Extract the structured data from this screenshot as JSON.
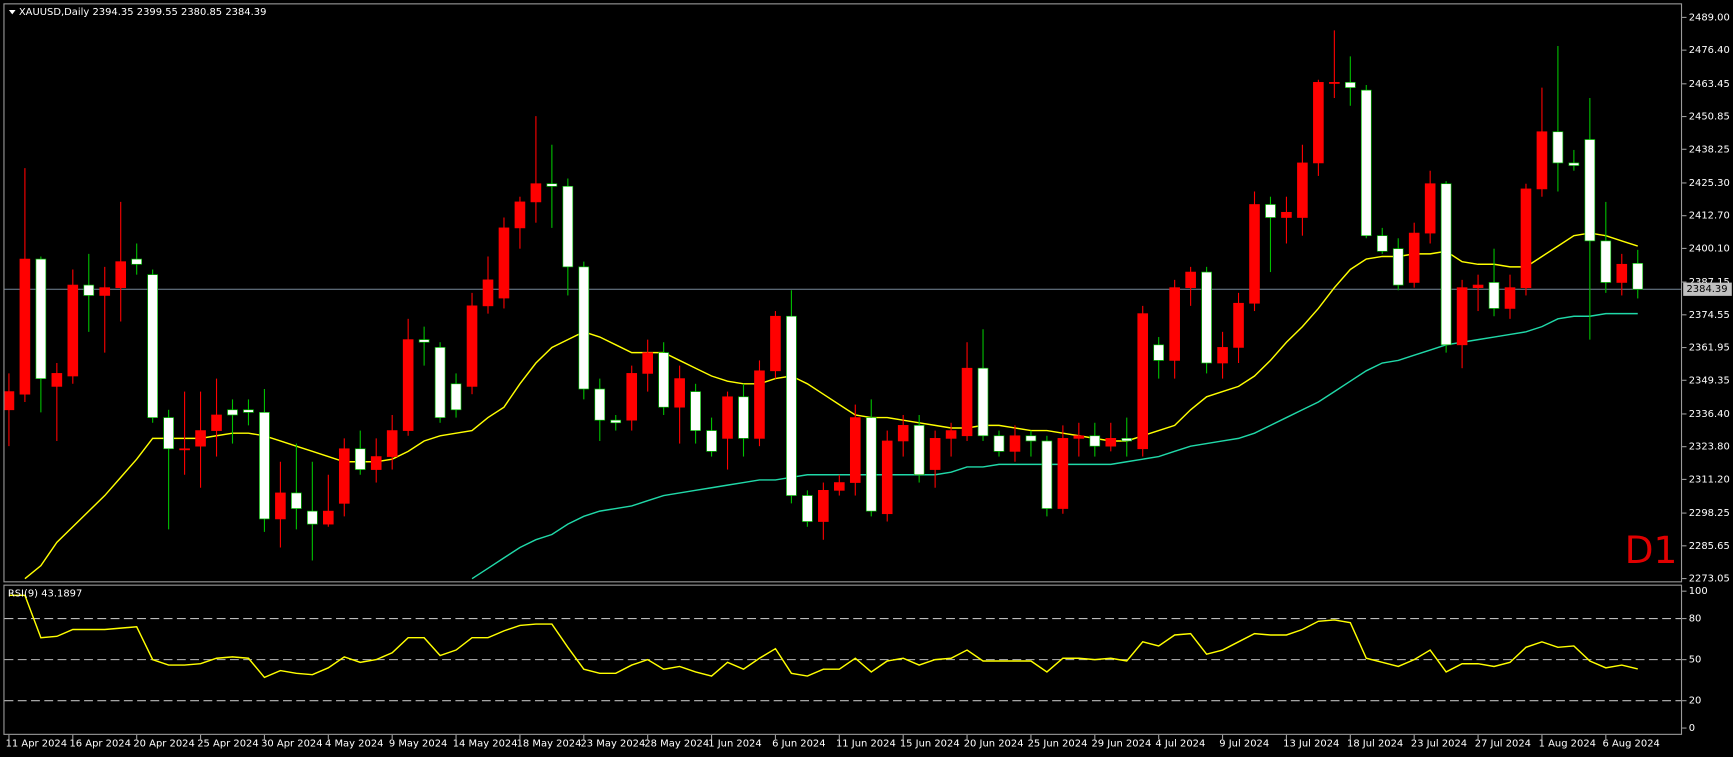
{
  "chart_data": [
    {
      "type": "candlestick",
      "title": "XAUUSD,Daily",
      "timeframe_label": "D1",
      "categories": [
        "11 Apr 2024",
        null,
        null,
        null,
        "16 Apr 2024",
        null,
        null,
        null,
        "20 Apr 2024",
        null,
        null,
        null,
        "25 Apr 2024",
        null,
        null,
        null,
        "30 Apr 2024",
        null,
        null,
        null,
        "4 May 2024",
        null,
        null,
        null,
        "9 May 2024",
        null,
        null,
        null,
        "14 May 2024",
        null,
        null,
        null,
        "18 May 2024",
        null,
        null,
        null,
        "23 May 2024",
        null,
        null,
        null,
        "28 May 2024",
        null,
        null,
        null,
        "1 Jun 2024",
        null,
        null,
        null,
        "6 Jun 2024",
        null,
        null,
        null,
        "11 Jun 2024",
        null,
        null,
        null,
        "15 Jun 2024",
        null,
        null,
        null,
        "20 Jun 2024",
        null,
        null,
        null,
        "25 Jun 2024",
        null,
        null,
        null,
        "29 Jun 2024",
        null,
        null,
        null,
        "4 Jul 2024",
        null,
        null,
        null,
        "9 Jul 2024",
        null,
        null,
        null,
        "13 Jul 2024",
        null,
        null,
        null,
        "18 Jul 2024",
        null,
        null,
        null,
        "23 Jul 2024",
        null,
        null,
        null,
        "27 Jul 2024",
        null,
        null,
        null,
        "1 Aug 2024",
        null,
        null,
        null,
        "6 Aug 2024",
        null,
        null
      ],
      "open": [
        2338,
        2344,
        2396,
        2347,
        2351,
        2386,
        2382,
        2385,
        2396,
        2390,
        2335,
        2323,
        2324,
        2330,
        2338,
        2338,
        2337,
        2296,
        2306,
        2299,
        2294,
        2302,
        2323,
        2315,
        2320,
        2330,
        2365,
        2362,
        2348,
        2347,
        2378,
        2381,
        2408,
        2418,
        2425,
        2424,
        2393,
        2346,
        2334,
        2334,
        2352,
        2360,
        2339,
        2345,
        2330,
        2327,
        2343,
        2327,
        2353,
        2374,
        2305,
        2295,
        2307,
        2310,
        2335,
        2298,
        2326,
        2332,
        2315,
        2327,
        2328,
        2354,
        2328,
        2322,
        2328,
        2326,
        2300,
        2327,
        2328,
        2324,
        2327,
        2323,
        2363,
        2357,
        2385,
        2391,
        2356,
        2362,
        2379,
        2417,
        2412,
        2412,
        2433,
        2464,
        2464,
        2461,
        2405,
        2400,
        2387,
        2406,
        2425,
        2363,
        2385,
        2387,
        2377,
        2385,
        2423,
        2445,
        2433,
        2442,
        2403,
        2387,
        2394.35
      ],
      "high": [
        2352,
        2431,
        2397,
        2356,
        2392,
        2398,
        2393,
        2418,
        2402,
        2392,
        2338,
        2345,
        2345,
        2350,
        2342,
        2342,
        2346,
        2318,
        2325,
        2318,
        2313,
        2327,
        2330,
        2327,
        2336,
        2373,
        2370,
        2364,
        2352,
        2383,
        2397,
        2412,
        2420,
        2451,
        2440,
        2427,
        2395,
        2350,
        2336,
        2355,
        2365,
        2364,
        2355,
        2348,
        2335,
        2345,
        2348,
        2357,
        2376,
        2384,
        2307,
        2310,
        2313,
        2340,
        2342,
        2330,
        2336,
        2336,
        2330,
        2333,
        2364,
        2369,
        2330,
        2332,
        2330,
        2328,
        2332,
        2333,
        2333,
        2333,
        2335,
        2378,
        2366,
        2388,
        2393,
        2393,
        2368,
        2383,
        2422,
        2420,
        2420,
        2440,
        2465,
        2484,
        2474,
        2463,
        2408,
        2404,
        2410,
        2430,
        2426,
        2388,
        2390,
        2400,
        2390,
        2425,
        2462,
        2478,
        2438,
        2458,
        2418,
        2398,
        2399.55
      ],
      "low": [
        2324,
        2341,
        2337,
        2326,
        2348,
        2368,
        2360,
        2372,
        2390,
        2333,
        2292,
        2313,
        2308,
        2320,
        2325,
        2332,
        2291,
        2285,
        2292,
        2280,
        2293,
        2297,
        2313,
        2310,
        2315,
        2328,
        2355,
        2333,
        2335,
        2344,
        2375,
        2377,
        2400,
        2410,
        2408,
        2382,
        2342,
        2326,
        2330,
        2330,
        2345,
        2336,
        2325,
        2325,
        2320,
        2315,
        2320,
        2324,
        2350,
        2302,
        2293,
        2288,
        2305,
        2305,
        2297,
        2295,
        2320,
        2310,
        2308,
        2320,
        2326,
        2326,
        2320,
        2318,
        2320,
        2297,
        2298,
        2320,
        2320,
        2322,
        2320,
        2320,
        2350,
        2350,
        2378,
        2352,
        2350,
        2356,
        2376,
        2391,
        2402,
        2405,
        2428,
        2458,
        2455,
        2404,
        2398,
        2384,
        2385,
        2402,
        2360,
        2354,
        2376,
        2374,
        2373,
        2382,
        2420,
        2422,
        2430,
        2365,
        2383,
        2382,
        2380.85
      ],
      "close": [
        2345,
        2396,
        2350,
        2352,
        2386,
        2382,
        2385,
        2395,
        2394,
        2335,
        2323,
        2323,
        2330,
        2336,
        2336,
        2337,
        2296,
        2306,
        2300,
        2294,
        2299,
        2323,
        2315,
        2320,
        2330,
        2365,
        2364,
        2335,
        2338,
        2378,
        2388,
        2408,
        2418,
        2425,
        2424,
        2393,
        2346,
        2334,
        2333,
        2352,
        2360,
        2339,
        2350,
        2330,
        2322,
        2343,
        2327,
        2353,
        2374,
        2305,
        2295,
        2307,
        2310,
        2335,
        2299,
        2326,
        2332,
        2313,
        2327,
        2330,
        2354,
        2328,
        2322,
        2328,
        2326,
        2300,
        2327,
        2328,
        2324,
        2327,
        2326,
        2375,
        2357,
        2385,
        2391,
        2356,
        2362,
        2379,
        2417,
        2412,
        2414,
        2433,
        2464,
        2464,
        2462,
        2405,
        2399,
        2386,
        2406,
        2425,
        2363,
        2385,
        2386,
        2377,
        2385,
        2423,
        2445,
        2433,
        2432,
        2403,
        2387,
        2394,
        2384.39
      ],
      "bull_color": "#ff0000",
      "bear_color": "#ffffff",
      "bull_wick_color": "#ff0000",
      "bear_wick_color": "#00c000",
      "moving_averages": [
        {
          "color": "#ffff00",
          "values": [
            null,
            2273,
            2278,
            2287,
            2293,
            2299,
            2305,
            2312,
            2319,
            2327,
            2327,
            2327,
            2327,
            2328,
            2329,
            2329,
            2328,
            2326,
            2324,
            2322,
            2320,
            2318,
            2318,
            2318,
            2319,
            2322,
            2326,
            2328,
            2329,
            2330,
            2335,
            2339,
            2348,
            2356,
            2362,
            2365,
            2368,
            2366,
            2363,
            2360,
            2360,
            2360,
            2357,
            2354,
            2351,
            2349,
            2348,
            2348,
            2350,
            2351,
            2348,
            2344,
            2340,
            2336,
            2335,
            2335,
            2334,
            2333,
            2332,
            2331,
            2331,
            2332,
            2332,
            2331,
            2330,
            2330,
            2329,
            2328,
            2327,
            2326,
            2326,
            2328,
            2330,
            2332,
            2338,
            2343,
            2345,
            2347,
            2351,
            2357,
            2364,
            2370,
            2377,
            2385,
            2392,
            2396,
            2397,
            2397,
            2398,
            2398,
            2399,
            2395,
            2394,
            2394,
            2393,
            2393,
            2397,
            2401,
            2405,
            2406,
            2405,
            2403,
            2401
          ]
        },
        {
          "color": "#20d8a8",
          "values": [
            null,
            null,
            null,
            null,
            null,
            null,
            null,
            null,
            null,
            null,
            null,
            null,
            null,
            null,
            null,
            null,
            null,
            null,
            null,
            null,
            null,
            null,
            null,
            null,
            null,
            null,
            null,
            null,
            null,
            2273,
            2277,
            2281,
            2285,
            2288,
            2290,
            2294,
            2297,
            2299,
            2300,
            2301,
            2303,
            2305,
            2306,
            2307,
            2308,
            2309,
            2310,
            2311,
            2311,
            2312,
            2313,
            2313,
            2313,
            2313,
            2313,
            2313,
            2313,
            2313,
            2313,
            2314,
            2316,
            2316,
            2317,
            2317,
            2317,
            2317,
            2317,
            2317,
            2317,
            2317,
            2318,
            2319,
            2320,
            2322,
            2324,
            2325,
            2326,
            2327,
            2329,
            2332,
            2335,
            2338,
            2341,
            2345,
            2349,
            2353,
            2356,
            2357,
            2359,
            2361,
            2363,
            2364,
            2365,
            2366,
            2367,
            2368,
            2370,
            2373,
            2374,
            2374,
            2375,
            2375,
            2375
          ]
        }
      ],
      "price_line_color": "#778899",
      "ylim": [
        2272,
        2494
      ],
      "yticks": [
        {
          "value": 2489,
          "label": "2489.00"
        },
        {
          "value": 2476.4,
          "label": "2476.40"
        },
        2463.45,
        2450.85,
        2438.25,
        {
          "value": 2425.3,
          "label": "2425.30"
        },
        {
          "value": 2412.7,
          "label": "2412.70"
        },
        {
          "value": 2400.1,
          "label": "2400.10"
        },
        2387.15,
        2374.55,
        2361.95,
        2349.35,
        {
          "value": 2336.4,
          "label": "2336.40"
        },
        {
          "value": 2323.8,
          "label": "2323.80"
        },
        {
          "value": 2311.2,
          "label": "2311.20"
        },
        2298.25,
        2285.65,
        2273.05
      ]
    },
    {
      "type": "line",
      "title": "RSI(9)",
      "color": "#ffff00",
      "values": [
        97,
        97,
        66,
        67,
        72,
        72,
        72,
        73,
        74,
        50,
        46,
        46,
        47,
        51,
        52,
        51,
        37,
        42,
        40,
        39,
        44,
        52,
        48,
        50,
        55,
        66,
        66,
        53,
        57,
        66,
        66,
        71,
        75,
        76,
        76,
        59,
        43,
        40,
        40,
        46,
        50,
        43,
        45,
        41,
        38,
        48,
        43,
        51,
        58,
        40,
        38,
        43,
        43,
        51,
        41,
        49,
        51,
        46,
        50,
        51,
        57,
        49,
        49,
        49,
        49,
        41,
        51,
        51,
        50,
        51,
        49,
        63,
        60,
        68,
        69,
        54,
        57,
        63,
        69,
        68,
        68,
        72,
        78,
        79,
        77,
        51,
        48,
        45,
        50,
        57,
        41,
        47,
        47,
        45,
        48,
        59,
        63,
        59,
        60,
        49,
        44,
        46,
        43.1897
      ],
      "ylim": [
        -5,
        104
      ],
      "yticks": [
        0,
        20,
        50,
        80,
        100
      ],
      "levels": [
        20,
        50,
        80
      ]
    }
  ]
}
